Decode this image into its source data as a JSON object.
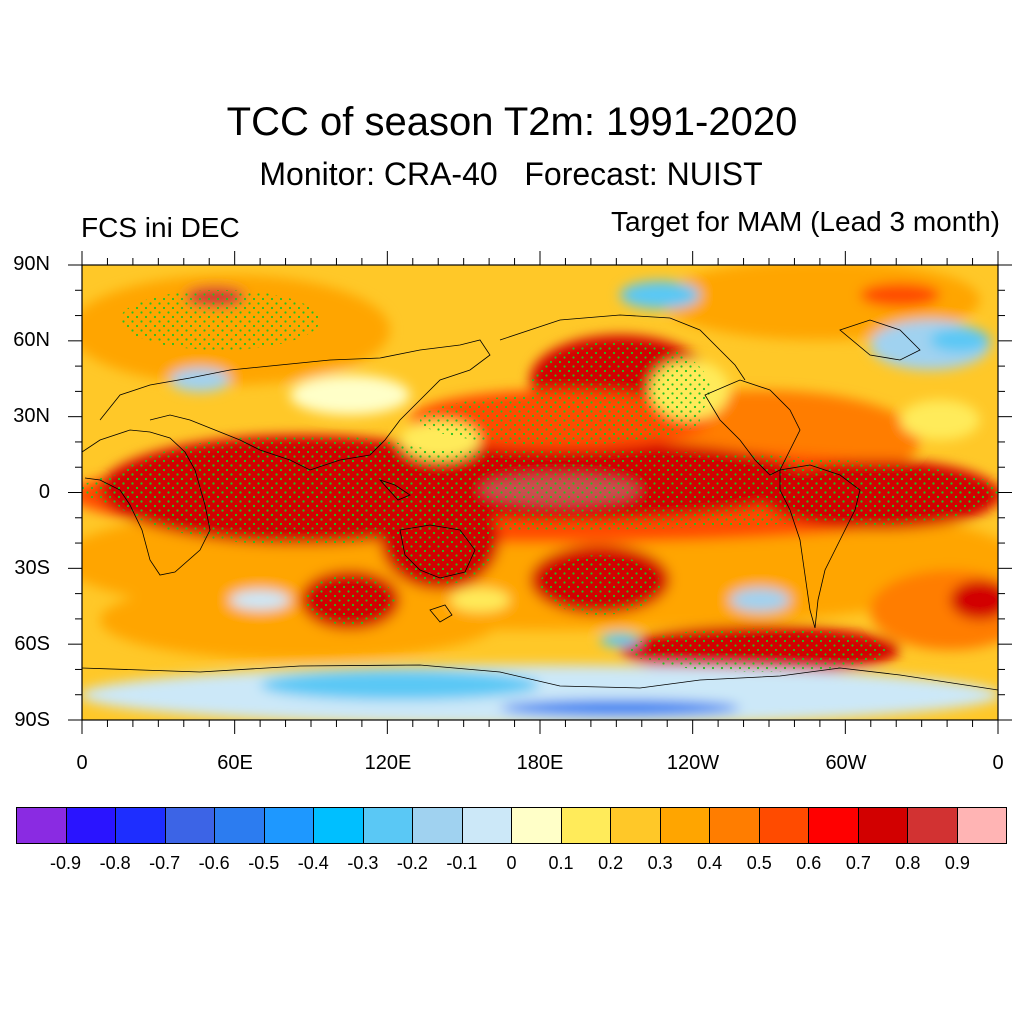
{
  "title": "TCC of season T2m: 1991-2020",
  "subtitle": "Monitor: CRA-40   Forecast: NUIST",
  "left_label": "FCS ini DEC",
  "right_label": "Target for MAM (Lead 3 month)",
  "lat_labels": [
    "90N",
    "60N",
    "30N",
    "0",
    "30S",
    "60S",
    "90S"
  ],
  "lon_labels": [
    "0",
    "60E",
    "120E",
    "180E",
    "120W",
    "60W",
    "0"
  ],
  "colorbar": {
    "colors": [
      "#8a2be2",
      "#2a14ff",
      "#1e2eff",
      "#3c64e6",
      "#2c7cf0",
      "#1e98ff",
      "#00bfff",
      "#5ac8f5",
      "#a0d2f0",
      "#cce8f8",
      "#ffffc8",
      "#ffeb5a",
      "#ffc828",
      "#ffa500",
      "#ff7d00",
      "#ff4b00",
      "#ff0000",
      "#d20000",
      "#d23232",
      "#ffb4b4"
    ],
    "labels": [
      "-0.9",
      "-0.8",
      "-0.7",
      "-0.6",
      "-0.5",
      "-0.4",
      "-0.3",
      "-0.2",
      "-0.1",
      "0",
      "0.1",
      "0.2",
      "0.3",
      "0.4",
      "0.5",
      "0.6",
      "0.7",
      "0.8",
      "0.9"
    ]
  },
  "colors": {
    "stipple_green": "#22c022",
    "stipple_blue": "#2030ff",
    "base_warm": "#ffc828"
  }
}
